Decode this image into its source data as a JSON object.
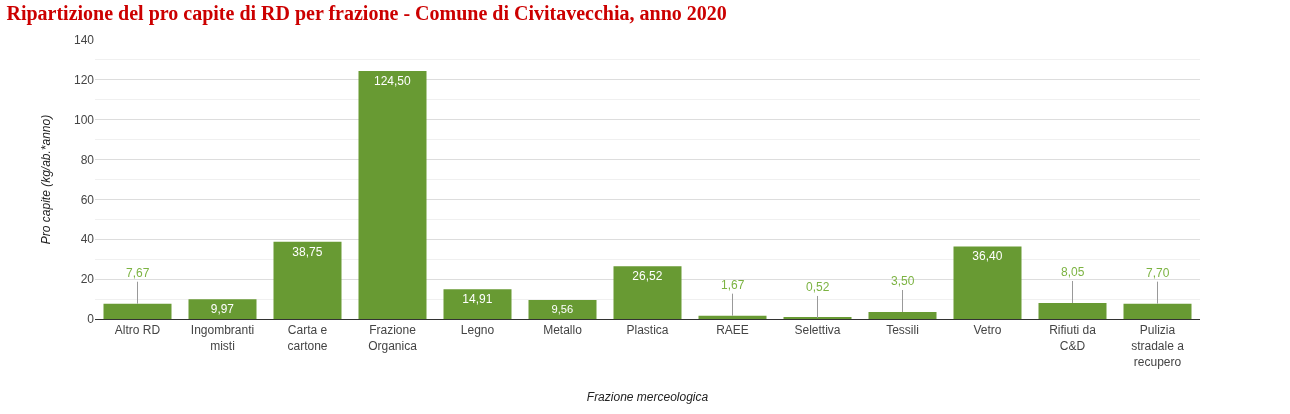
{
  "chart_data": {
    "type": "bar",
    "title": "Ripartizione del pro capite di RD per frazione - Comune di Civitavecchia, anno 2020",
    "xlabel": "Frazione merceologica",
    "ylabel": "Pro capite (kg/ab.*anno)",
    "categories": [
      "Altro RD",
      "Ingombranti misti",
      "Carta e cartone",
      "Frazione Organica",
      "Legno",
      "Metallo",
      "Plastica",
      "RAEE",
      "Selettiva",
      "Tessili",
      "Vetro",
      "Rifiuti da C&D",
      "Pulizia stradale a recupero"
    ],
    "values": [
      7.67,
      9.97,
      38.75,
      124.5,
      14.91,
      9.56,
      26.52,
      1.67,
      0.52,
      3.5,
      36.4,
      8.05,
      7.7
    ],
    "value_labels": [
      "7,67",
      "9,97",
      "38,75",
      "124,50",
      "14,91",
      "9,56",
      "26,52",
      "1,67",
      "0,52",
      "3,50",
      "36,40",
      "8,05",
      "7,70"
    ],
    "color": "#689a33",
    "ylim": [
      0,
      140
    ],
    "yticks": [
      0,
      20,
      40,
      60,
      80,
      100,
      120,
      140
    ],
    "grid": "y",
    "legend": false
  }
}
